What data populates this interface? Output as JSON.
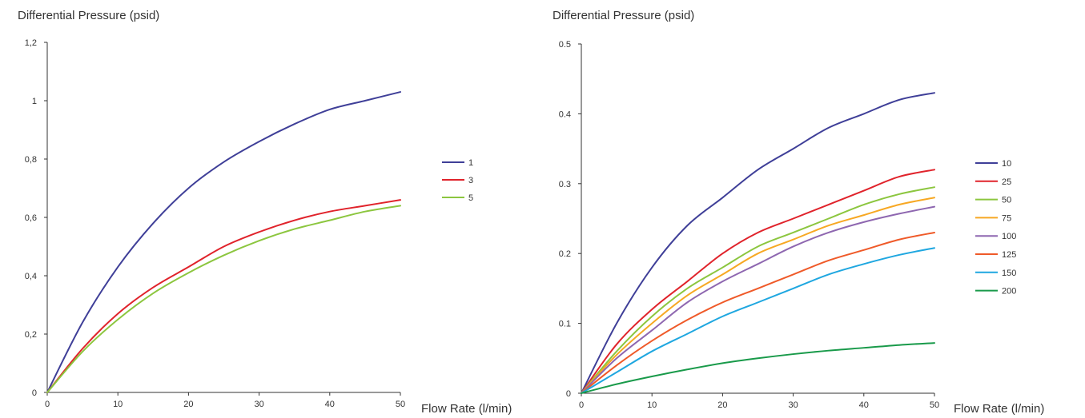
{
  "chart_data": [
    {
      "type": "line",
      "title": "",
      "ylabel": "Differential Pressure (psid)",
      "xlabel": "Flow Rate (l/min)",
      "xlim": [
        0,
        50
      ],
      "ylim": [
        0,
        1.2
      ],
      "xticks": [
        0,
        10,
        20,
        30,
        40,
        50
      ],
      "xtick_labels": [
        "0",
        "10",
        "20",
        "30",
        "40",
        "50"
      ],
      "yticks": [
        0,
        0.2,
        0.4,
        0.6,
        0.8,
        1.0,
        1.2
      ],
      "ytick_labels": [
        "0",
        "0,2",
        "0,4",
        "0,6",
        "0,8",
        "1",
        "1,2"
      ],
      "grid": false,
      "legend_position": "right",
      "x": [
        0,
        5,
        10,
        15,
        20,
        25,
        30,
        35,
        40,
        45,
        50
      ],
      "series": [
        {
          "name": "1",
          "color": "#3f3f98",
          "values": [
            0,
            0.24,
            0.43,
            0.58,
            0.7,
            0.79,
            0.86,
            0.92,
            0.97,
            1.0,
            1.03
          ]
        },
        {
          "name": "3",
          "color": "#e0232b",
          "values": [
            0,
            0.15,
            0.27,
            0.36,
            0.43,
            0.5,
            0.55,
            0.59,
            0.62,
            0.64,
            0.66
          ]
        },
        {
          "name": "5",
          "color": "#8cc63f",
          "values": [
            0,
            0.14,
            0.25,
            0.34,
            0.41,
            0.47,
            0.52,
            0.56,
            0.59,
            0.62,
            0.64
          ]
        }
      ]
    },
    {
      "type": "line",
      "title": "",
      "ylabel": "Differential Pressure (psid)",
      "xlabel": "Flow Rate (l/min)",
      "xlim": [
        0,
        50
      ],
      "ylim": [
        0,
        0.5
      ],
      "xticks": [
        0,
        10,
        20,
        30,
        40,
        50
      ],
      "xtick_labels": [
        "0",
        "10",
        "20",
        "30",
        "40",
        "50"
      ],
      "yticks": [
        0,
        0.1,
        0.2,
        0.3,
        0.4,
        0.5
      ],
      "ytick_labels": [
        "0",
        "0.1",
        "0.2",
        "0.3",
        "0.4",
        "0.5"
      ],
      "grid": false,
      "legend_position": "right",
      "x": [
        0,
        5,
        10,
        15,
        20,
        25,
        30,
        35,
        40,
        45,
        50
      ],
      "series": [
        {
          "name": "10",
          "color": "#3f3f98",
          "values": [
            0,
            0.1,
            0.18,
            0.24,
            0.28,
            0.32,
            0.35,
            0.38,
            0.4,
            0.42,
            0.43
          ]
        },
        {
          "name": "25",
          "color": "#e0232b",
          "values": [
            0,
            0.07,
            0.12,
            0.16,
            0.2,
            0.23,
            0.25,
            0.27,
            0.29,
            0.31,
            0.32
          ]
        },
        {
          "name": "50",
          "color": "#8cc63f",
          "values": [
            0,
            0.06,
            0.11,
            0.15,
            0.18,
            0.21,
            0.23,
            0.25,
            0.27,
            0.285,
            0.295
          ]
        },
        {
          "name": "75",
          "color": "#f7a823",
          "values": [
            0,
            0.055,
            0.1,
            0.14,
            0.17,
            0.2,
            0.22,
            0.24,
            0.255,
            0.27,
            0.28
          ]
        },
        {
          "name": "100",
          "color": "#8e67b0",
          "values": [
            0,
            0.05,
            0.09,
            0.13,
            0.16,
            0.185,
            0.21,
            0.23,
            0.245,
            0.257,
            0.267
          ]
        },
        {
          "name": "125",
          "color": "#ef5a29",
          "values": [
            0,
            0.04,
            0.075,
            0.105,
            0.13,
            0.15,
            0.17,
            0.19,
            0.205,
            0.22,
            0.23
          ]
        },
        {
          "name": "150",
          "color": "#1fa7e0",
          "values": [
            0,
            0.03,
            0.06,
            0.085,
            0.11,
            0.13,
            0.15,
            0.17,
            0.185,
            0.198,
            0.208
          ]
        },
        {
          "name": "200",
          "color": "#199a4a",
          "values": [
            0,
            0.013,
            0.024,
            0.034,
            0.043,
            0.05,
            0.056,
            0.061,
            0.065,
            0.069,
            0.072
          ]
        }
      ]
    }
  ]
}
